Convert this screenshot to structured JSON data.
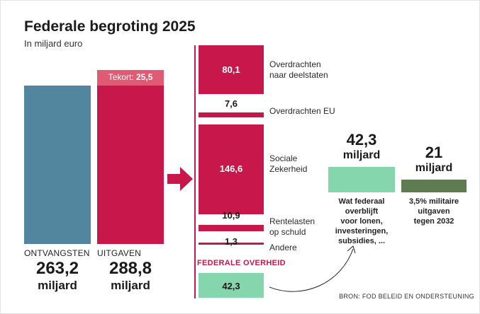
{
  "title": "Federale begroting 2025",
  "subtitle": "In miljard euro",
  "colors": {
    "revenue": "#52869f",
    "spending": "#c8174a",
    "deficit": "#e05a74",
    "remaining": "#86d6ad",
    "military": "#5e7c4f"
  },
  "chart_data": {
    "type": "bar",
    "title": "Federale begroting 2025",
    "subtitle": "In miljard euro",
    "unit": "miljard euro",
    "main_bars": [
      {
        "label": "ONTVANGSTEN",
        "value": 263.2,
        "value_text": "263,2",
        "unit": "miljard"
      },
      {
        "label": "UITGAVEN",
        "value": 288.8,
        "value_text": "288,8",
        "unit": "miljard",
        "deficit": {
          "label": "Tekort:",
          "value": 25.5,
          "value_text": "25,5"
        }
      }
    ],
    "breakdown": [
      {
        "label_lines": [
          "Overdrachten",
          "naar deelstaten"
        ],
        "value": 80.1,
        "value_text": "80,1"
      },
      {
        "label_lines": [
          "Overdrachten EU"
        ],
        "value": 7.6,
        "value_text": "7,6"
      },
      {
        "label_lines": [
          "Sociale",
          "Zekerheid"
        ],
        "value": 146.6,
        "value_text": "146,6"
      },
      {
        "label_lines": [
          "Rentelasten",
          "op schuld"
        ],
        "value": 10.9,
        "value_text": "10,9"
      },
      {
        "label_lines": [
          "Andere"
        ],
        "value": 1.3,
        "value_text": "1,3"
      }
    ],
    "federal": {
      "label": "FEDERALE OVERHEID",
      "value": 42.3,
      "value_text": "42,3"
    },
    "comparison": [
      {
        "value": 42.3,
        "value_text": "42,3",
        "unit": "miljard",
        "caption_lines": [
          "Wat federaal",
          "overblijft",
          "voor lonen,",
          "investeringen,",
          "subsidies, ..."
        ]
      },
      {
        "value": 21,
        "value_text": "21",
        "unit": "miljard",
        "caption_lines": [
          "3,5% militaire",
          "uitgaven",
          "tegen 2032"
        ]
      }
    ]
  },
  "source": "BRON: FOD BELEID EN ONDERSTEUNING"
}
